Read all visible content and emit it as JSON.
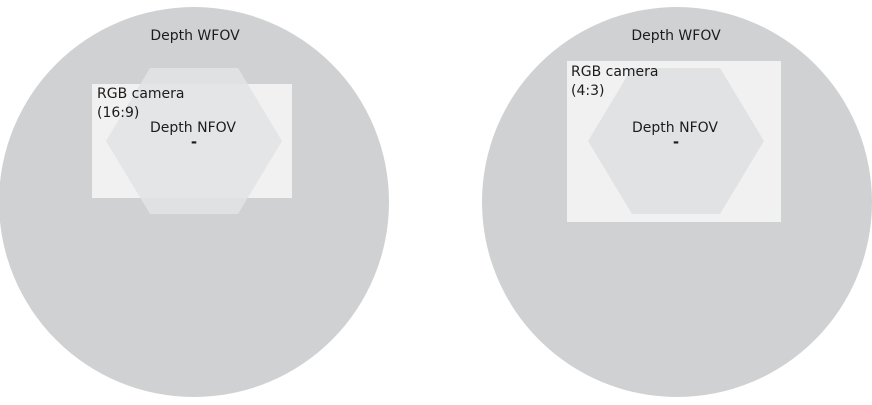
{
  "colors": {
    "wfov_fill": "#d0d1d3",
    "rgb_fill": "#f1f1f1",
    "nfov_fill": "#e1e2e4",
    "text": "#1c1c1c",
    "background": "#ffffff"
  },
  "diagrams": [
    {
      "wfov_label": "Depth WFOV",
      "rgb_label_line1": "RGB camera",
      "rgb_label_line2": "(16:9)",
      "nfov_label": "Depth NFOV",
      "center_mark": "-"
    },
    {
      "wfov_label": "Depth WFOV",
      "rgb_label_line1": "RGB camera",
      "rgb_label_line2": "(4:3)",
      "nfov_label": "Depth NFOV",
      "center_mark": "-"
    }
  ]
}
